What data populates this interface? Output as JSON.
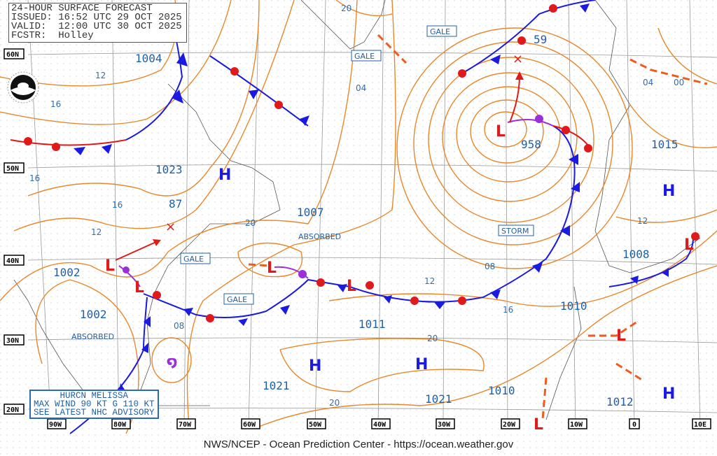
{
  "header": {
    "title": "24-HOUR SURFACE FORECAST",
    "issued": "ISSUED: 16:52 UTC 29 OCT 2025",
    "valid": "VALID:  12:00 UTC 30 OCT 2025",
    "forecaster": "FCSTR:  Holley"
  },
  "logo": "NOAA",
  "hurricane_box": {
    "line1": "HURCN MELISSA",
    "line2": "MAX WIND 90 KT G 110 KT",
    "line3": "SEE LATEST NHC ADVISORY"
  },
  "footer": "NWS/NCEP - Ocean Prediction Center - https://ocean.weather.gov",
  "lat_labels": [
    "60N",
    "50N",
    "40N",
    "30N",
    "20N"
  ],
  "lon_labels": [
    "90W",
    "80W",
    "70W",
    "60W",
    "50W",
    "40W",
    "30W",
    "20W",
    "10W",
    "0",
    "10E"
  ],
  "pressure_labels": [
    "1004",
    "1023",
    "87",
    "1002",
    "1002",
    "1007",
    "1011",
    "1021",
    "1021",
    "1010",
    "1012",
    "1010",
    "1008",
    "1015",
    "958",
    "59"
  ],
  "status_labels": {
    "absorbed1": "ABSORBED",
    "absorbed2": "ABSORBED",
    "storm": "STORM",
    "gale1": "GALE",
    "gale2": "GALE",
    "gale3": "GALE",
    "gale4": "GALE"
  },
  "isobar_labels": [
    "12",
    "16",
    "16",
    "16",
    "12",
    "04",
    "20",
    "08",
    "20",
    "12",
    "08",
    "16",
    "20",
    "20",
    "12",
    "04",
    "00",
    "20"
  ],
  "symbols": {
    "high": "H",
    "low": "L"
  },
  "colors": {
    "isobar": "#e8872a",
    "cold_front": "#1a1ae0",
    "warm_front": "#e01a1a",
    "occluded": "#9b30d9",
    "label": "#1f5fa8"
  }
}
